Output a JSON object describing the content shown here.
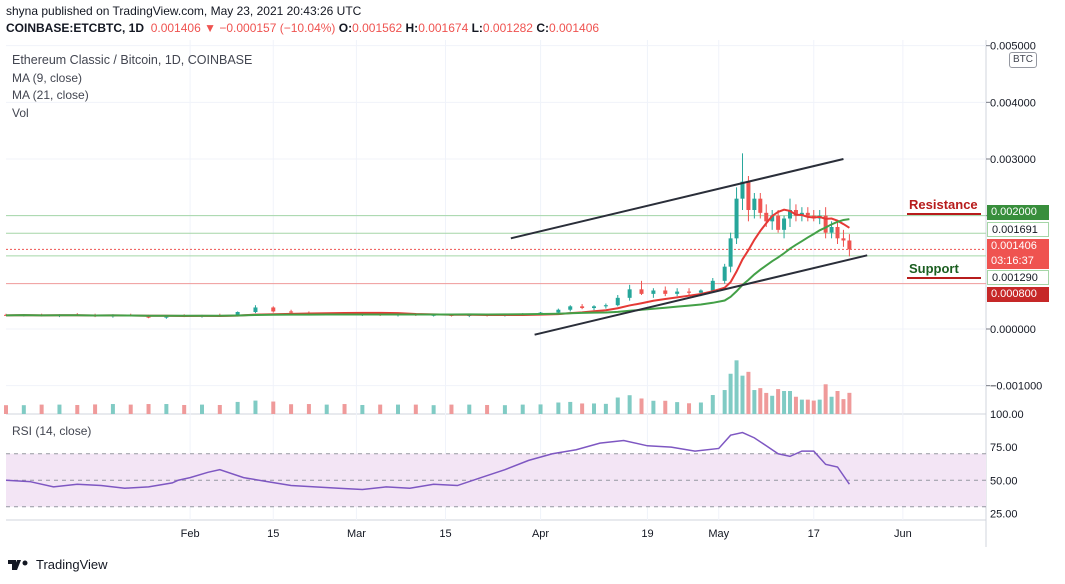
{
  "header": {
    "published": "shyna published on TradingView.com, May 23, 2021 20:43:26 UTC",
    "symbol": "COINBASE:ETCBTC, 1D",
    "last": "0.001406",
    "change_arrow": "▼",
    "change": "−0.000157 (−10.04%)",
    "o_label": "O:",
    "o": "0.001562",
    "h_label": "H:",
    "h": "0.001674",
    "l_label": "L:",
    "l": "0.001282",
    "c_label": "C:",
    "c": "0.001406"
  },
  "legend": {
    "title": "Ethereum Classic / Bitcoin, 1D, COINBASE",
    "ma9": "MA (9, close)",
    "ma21": "MA (21, close)",
    "vol": "Vol"
  },
  "rsi_label": "RSI (14, close)",
  "currency_badge": "BTC",
  "annotations": {
    "resistance": "Resistance",
    "support": "Support"
  },
  "price_tags": {
    "resistance_level": "0.002000",
    "ma_value": "0.001691",
    "last_price": "0.001406",
    "countdown": "03:16:37",
    "support_level": "0.001290",
    "lower_level": "0.000800"
  },
  "footer": {
    "brand": "TradingView"
  },
  "colors": {
    "up": "#26a69a",
    "down": "#ef5350",
    "ma9": "#e53935",
    "ma21": "#43a047",
    "rsi": "#7e57c2",
    "rsi_band": "#f3e5f5"
  },
  "chart_data": [
    {
      "type": "candlestick",
      "title": "Ethereum Classic / Bitcoin, 1D, COINBASE",
      "y_ticks": [
        "0.005000",
        "0.004000",
        "0.003000",
        "0.002000",
        "0.000000",
        "−0.001000"
      ],
      "y_tick_values": [
        0.005,
        0.004,
        0.003,
        0.002,
        0.0,
        -0.001
      ],
      "ylim": [
        -0.0015,
        0.0051
      ],
      "x_ticks": [
        "Feb",
        "15",
        "Mar",
        "15",
        "Apr",
        "19",
        "May",
        "17",
        "Jun"
      ],
      "x_tick_days": [
        31,
        45,
        59,
        74,
        90,
        108,
        120,
        136,
        151
      ],
      "x_range_days": [
        0,
        165
      ],
      "candles": [
        {
          "d": 0,
          "o": 0.00025,
          "h": 0.00027,
          "l": 0.00023,
          "c": 0.00024
        },
        {
          "d": 3,
          "o": 0.00024,
          "h": 0.00026,
          "l": 0.00022,
          "c": 0.00025
        },
        {
          "d": 6,
          "o": 0.00025,
          "h": 0.00027,
          "l": 0.00022,
          "c": 0.00023
        },
        {
          "d": 9,
          "o": 0.00023,
          "h": 0.00026,
          "l": 0.00021,
          "c": 0.00025
        },
        {
          "d": 12,
          "o": 0.00025,
          "h": 0.00028,
          "l": 0.00023,
          "c": 0.00024
        },
        {
          "d": 15,
          "o": 0.00024,
          "h": 0.00027,
          "l": 0.00021,
          "c": 0.00022
        },
        {
          "d": 18,
          "o": 0.00022,
          "h": 0.00026,
          "l": 0.0002,
          "c": 0.00025
        },
        {
          "d": 21,
          "o": 0.00025,
          "h": 0.00027,
          "l": 0.00022,
          "c": 0.00023
        },
        {
          "d": 24,
          "o": 0.00023,
          "h": 0.00025,
          "l": 0.00019,
          "c": 0.0002
        },
        {
          "d": 27,
          "o": 0.0002,
          "h": 0.00024,
          "l": 0.00018,
          "c": 0.00023
        },
        {
          "d": 30,
          "o": 0.00023,
          "h": 0.00026,
          "l": 0.00021,
          "c": 0.00022
        },
        {
          "d": 33,
          "o": 0.00022,
          "h": 0.00025,
          "l": 0.0002,
          "c": 0.00024
        },
        {
          "d": 36,
          "o": 0.00024,
          "h": 0.00027,
          "l": 0.00022,
          "c": 0.00023
        },
        {
          "d": 39,
          "o": 0.00023,
          "h": 0.00031,
          "l": 0.00022,
          "c": 0.0003
        },
        {
          "d": 42,
          "o": 0.0003,
          "h": 0.00042,
          "l": 0.00028,
          "c": 0.00038
        },
        {
          "d": 45,
          "o": 0.00038,
          "h": 0.0004,
          "l": 0.00029,
          "c": 0.00031
        },
        {
          "d": 48,
          "o": 0.00031,
          "h": 0.00034,
          "l": 0.00027,
          "c": 0.00029
        },
        {
          "d": 51,
          "o": 0.00029,
          "h": 0.00031,
          "l": 0.00025,
          "c": 0.00026
        },
        {
          "d": 54,
          "o": 0.00026,
          "h": 0.00029,
          "l": 0.00024,
          "c": 0.00028
        },
        {
          "d": 57,
          "o": 0.00028,
          "h": 0.0003,
          "l": 0.00024,
          "c": 0.00025
        },
        {
          "d": 60,
          "o": 0.00025,
          "h": 0.00028,
          "l": 0.00023,
          "c": 0.00026
        },
        {
          "d": 63,
          "o": 0.00026,
          "h": 0.00028,
          "l": 0.00023,
          "c": 0.00024
        },
        {
          "d": 66,
          "o": 0.00024,
          "h": 0.00027,
          "l": 0.00022,
          "c": 0.00026
        },
        {
          "d": 69,
          "o": 0.00026,
          "h": 0.00028,
          "l": 0.00023,
          "c": 0.00024
        },
        {
          "d": 72,
          "o": 0.00024,
          "h": 0.00026,
          "l": 0.00022,
          "c": 0.00025
        },
        {
          "d": 75,
          "o": 0.00025,
          "h": 0.00027,
          "l": 0.00022,
          "c": 0.00023
        },
        {
          "d": 78,
          "o": 0.00023,
          "h": 0.00026,
          "l": 0.00021,
          "c": 0.00025
        },
        {
          "d": 81,
          "o": 0.00025,
          "h": 0.00027,
          "l": 0.00022,
          "c": 0.00024
        },
        {
          "d": 84,
          "o": 0.00024,
          "h": 0.00026,
          "l": 0.00022,
          "c": 0.00025
        },
        {
          "d": 87,
          "o": 0.00025,
          "h": 0.00028,
          "l": 0.00023,
          "c": 0.00027
        },
        {
          "d": 90,
          "o": 0.00027,
          "h": 0.0003,
          "l": 0.00024,
          "c": 0.00029
        },
        {
          "d": 93,
          "o": 0.00029,
          "h": 0.00036,
          "l": 0.00026,
          "c": 0.00034
        },
        {
          "d": 95,
          "o": 0.00034,
          "h": 0.00042,
          "l": 0.00031,
          "c": 0.0004
        },
        {
          "d": 97,
          "o": 0.0004,
          "h": 0.00044,
          "l": 0.00035,
          "c": 0.00037
        },
        {
          "d": 99,
          "o": 0.00037,
          "h": 0.00042,
          "l": 0.00033,
          "c": 0.0004
        },
        {
          "d": 101,
          "o": 0.0004,
          "h": 0.00045,
          "l": 0.00036,
          "c": 0.00042
        },
        {
          "d": 103,
          "o": 0.00042,
          "h": 0.0006,
          "l": 0.0004,
          "c": 0.00055
        },
        {
          "d": 105,
          "o": 0.00055,
          "h": 0.00078,
          "l": 0.0005,
          "c": 0.0007
        },
        {
          "d": 107,
          "o": 0.0007,
          "h": 0.00085,
          "l": 0.0006,
          "c": 0.00062
        },
        {
          "d": 109,
          "o": 0.00062,
          "h": 0.00072,
          "l": 0.00055,
          "c": 0.00068
        },
        {
          "d": 111,
          "o": 0.00068,
          "h": 0.00075,
          "l": 0.00058,
          "c": 0.00062
        },
        {
          "d": 113,
          "o": 0.00062,
          "h": 0.00072,
          "l": 0.00058,
          "c": 0.00066
        },
        {
          "d": 115,
          "o": 0.00066,
          "h": 0.00072,
          "l": 0.0006,
          "c": 0.00064
        },
        {
          "d": 117,
          "o": 0.00064,
          "h": 0.0007,
          "l": 0.00058,
          "c": 0.00068
        },
        {
          "d": 119,
          "o": 0.00068,
          "h": 0.0009,
          "l": 0.00065,
          "c": 0.00085
        },
        {
          "d": 121,
          "o": 0.00085,
          "h": 0.00115,
          "l": 0.0008,
          "c": 0.0011
        },
        {
          "d": 122,
          "o": 0.0011,
          "h": 0.0017,
          "l": 0.001,
          "c": 0.0016
        },
        {
          "d": 123,
          "o": 0.0016,
          "h": 0.0025,
          "l": 0.0015,
          "c": 0.0023
        },
        {
          "d": 124,
          "o": 0.0023,
          "h": 0.0031,
          "l": 0.0021,
          "c": 0.0026
        },
        {
          "d": 125,
          "o": 0.0026,
          "h": 0.0027,
          "l": 0.0019,
          "c": 0.0021
        },
        {
          "d": 126,
          "o": 0.0021,
          "h": 0.0024,
          "l": 0.00195,
          "c": 0.0023
        },
        {
          "d": 127,
          "o": 0.0023,
          "h": 0.0024,
          "l": 0.00195,
          "c": 0.00205
        },
        {
          "d": 128,
          "o": 0.00205,
          "h": 0.0022,
          "l": 0.0018,
          "c": 0.0019
        },
        {
          "d": 129,
          "o": 0.0019,
          "h": 0.0021,
          "l": 0.00175,
          "c": 0.002
        },
        {
          "d": 130,
          "o": 0.002,
          "h": 0.0021,
          "l": 0.0017,
          "c": 0.00175
        },
        {
          "d": 131,
          "o": 0.00175,
          "h": 0.002,
          "l": 0.0016,
          "c": 0.00195
        },
        {
          "d": 132,
          "o": 0.00195,
          "h": 0.0023,
          "l": 0.0018,
          "c": 0.0021
        },
        {
          "d": 133,
          "o": 0.0021,
          "h": 0.0022,
          "l": 0.0019,
          "c": 0.002
        },
        {
          "d": 134,
          "o": 0.002,
          "h": 0.00215,
          "l": 0.0019,
          "c": 0.00205
        },
        {
          "d": 135,
          "o": 0.00205,
          "h": 0.00215,
          "l": 0.0019,
          "c": 0.002
        },
        {
          "d": 136,
          "o": 0.002,
          "h": 0.0021,
          "l": 0.0019,
          "c": 0.00195
        },
        {
          "d": 137,
          "o": 0.00195,
          "h": 0.0021,
          "l": 0.00185,
          "c": 0.002
        },
        {
          "d": 138,
          "o": 0.002,
          "h": 0.00215,
          "l": 0.0016,
          "c": 0.0017
        },
        {
          "d": 139,
          "o": 0.0017,
          "h": 0.0019,
          "l": 0.0016,
          "c": 0.0018
        },
        {
          "d": 140,
          "o": 0.0018,
          "h": 0.0019,
          "l": 0.0015,
          "c": 0.0016
        },
        {
          "d": 141,
          "o": 0.0016,
          "h": 0.00175,
          "l": 0.00145,
          "c": 0.001562
        },
        {
          "d": 142,
          "o": 0.001562,
          "h": 0.001674,
          "l": 0.001282,
          "c": 0.001406
        }
      ],
      "trendlines": [
        {
          "name": "upper channel",
          "from": {
            "d": 85,
            "v": 0.0016
          },
          "to": {
            "d": 141,
            "v": 0.003
          }
        },
        {
          "name": "lower channel",
          "from": {
            "d": 89,
            "v": -0.0001
          },
          "to": {
            "d": 145,
            "v": 0.0013
          }
        }
      ],
      "horizontal_levels": [
        0.002,
        0.00169,
        0.001406,
        0.00129,
        0.0008
      ]
    },
    {
      "type": "line",
      "title": "RSI (14, close)",
      "y_ticks": [
        "100.00",
        "75.00",
        "50.00",
        "25.00"
      ],
      "y_tick_values": [
        100,
        75,
        50,
        25
      ],
      "ylim": [
        20,
        100
      ],
      "band": [
        30,
        70
      ],
      "x_days": [
        0,
        4,
        8,
        12,
        16,
        20,
        24,
        28,
        29,
        31,
        34,
        36,
        40,
        44,
        48,
        52,
        56,
        60,
        64,
        68,
        72,
        76,
        80,
        84,
        88,
        92,
        96,
        100,
        104,
        108,
        112,
        116,
        120,
        122,
        124,
        126,
        128,
        130,
        132,
        134,
        136,
        138,
        140,
        142
      ],
      "values": [
        50,
        49,
        45,
        47,
        46,
        44,
        45,
        48,
        50,
        52,
        56,
        58,
        52,
        49,
        46,
        45,
        44,
        43,
        45,
        44,
        47,
        46,
        52,
        58,
        65,
        70,
        73,
        78,
        80,
        76,
        75,
        72,
        74,
        84,
        86,
        82,
        76,
        70,
        68,
        72,
        72,
        62,
        60,
        47
      ]
    }
  ]
}
